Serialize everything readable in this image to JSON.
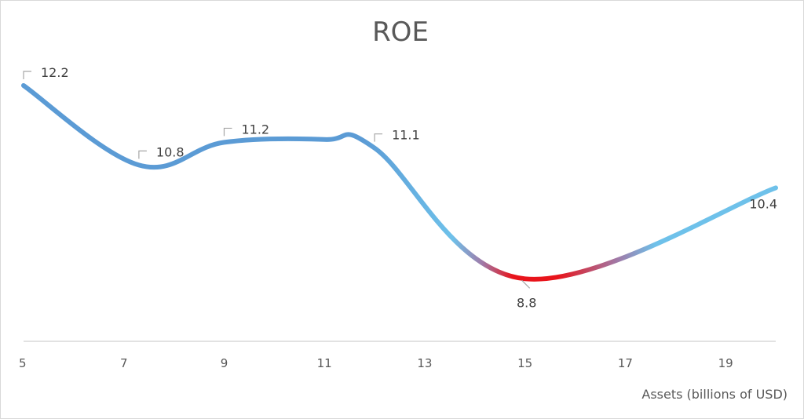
{
  "chart_data": {
    "type": "line",
    "title": "ROE",
    "xlabel": "Assets (billions of USD)",
    "ylabel": "",
    "x_ticks": [
      "5",
      "7",
      "9",
      "11",
      "13",
      "15",
      "17",
      "19"
    ],
    "xlim": [
      5,
      20
    ],
    "ylim": [
      7.7,
      12.6
    ],
    "grid": false,
    "legend": "none",
    "series": [
      {
        "points": [
          {
            "x": 5,
            "y": 12.2
          },
          {
            "x": 7.3,
            "y": 10.8
          },
          {
            "x": 9,
            "y": 11.2
          },
          {
            "x": 11,
            "y": 11.25
          },
          {
            "x": 12,
            "y": 11.1
          },
          {
            "x": 15,
            "y": 8.8
          },
          {
            "x": 20,
            "y": 10.4
          }
        ]
      }
    ],
    "data_labels": [
      {
        "x": 5,
        "y": 12.2,
        "text": "12.2"
      },
      {
        "x": 7.3,
        "y": 10.8,
        "text": "10.8"
      },
      {
        "x": 9,
        "y": 11.2,
        "text": "11.2"
      },
      {
        "x": 12,
        "y": 11.1,
        "text": "11.1"
      },
      {
        "x": 15,
        "y": 8.8,
        "text": "8.8"
      },
      {
        "x": 20,
        "y": 10.4,
        "text": "10.4"
      }
    ],
    "colors": {
      "line_dark": "#5b9bd5",
      "line_light": "#6ec1ea",
      "highlight": "#e8141b",
      "axis": "#d9d9d9",
      "leader": "#a6a6a6"
    }
  }
}
